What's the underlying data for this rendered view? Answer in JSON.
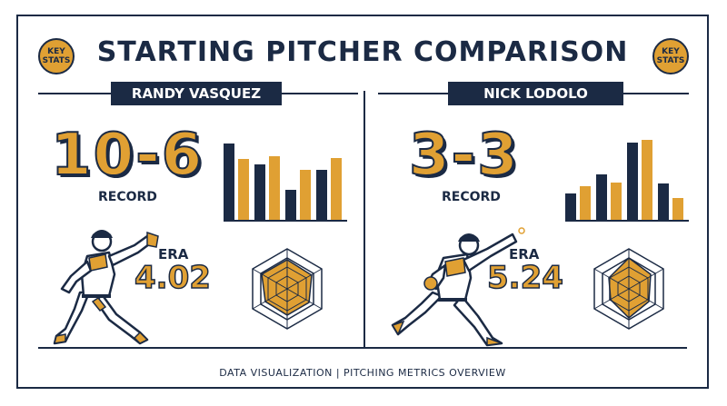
{
  "badge_left": "KEY\nSTATS",
  "badge_right": "KEY\nSTATS",
  "title": "STARTING PITCHER COMPARISON",
  "colors": {
    "navy": "#1b2a44",
    "gold": "#e0a033"
  },
  "left": {
    "name": "RANDY VASQUEZ",
    "record": "10-6",
    "record_label": "RECORD",
    "era_label": "ERA",
    "era": "4.02",
    "bars": [
      {
        "navy": 0.95,
        "gold": 0.76
      },
      {
        "navy": 0.69,
        "gold": 0.8
      },
      {
        "navy": 0.37,
        "gold": 0.62
      },
      {
        "navy": 0.63,
        "gold": 0.77
      }
    ]
  },
  "right": {
    "name": "NICK LODOLO",
    "record": "3-3",
    "record_label": "RECORD",
    "era_label": "ERA",
    "era": "5.24",
    "bars": [
      {
        "navy": 0.33,
        "gold": 0.42
      },
      {
        "navy": 0.57,
        "gold": 0.47
      },
      {
        "navy": 0.97,
        "gold": 1.0
      },
      {
        "navy": 0.45,
        "gold": 0.27
      }
    ]
  },
  "footer": "DATA VISUALIZATION  |  PITCHING METRICS OVERVIEW"
}
